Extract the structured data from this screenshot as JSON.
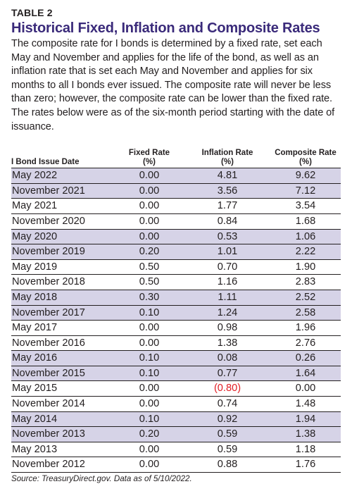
{
  "table_label": "TABLE 2",
  "title": "Historical Fixed, Inflation and Composite Rates",
  "title_color": "#3a2a7a",
  "shade_color": "#d6d3e7",
  "negative_color": "#e21d24",
  "intro": "The composite rate for I bonds is determined by a fixed rate, set each May and November and applies for the life of the bond, as well as an inflation rate that is set each May and November and applies for six months to all I bonds ever issued. The composite rate will never be less than zero; however, the composite rate can be lower than the fixed rate. The rates below were as of the six-month period starting with the date of issuance.",
  "columns": [
    {
      "line1": "",
      "line2": "I Bond Issue Date"
    },
    {
      "line1": "Fixed Rate",
      "line2": "(%)"
    },
    {
      "line1": "Inflation Rate",
      "line2": "(%)"
    },
    {
      "line1": "Composite Rate",
      "line2": "(%)"
    }
  ],
  "rows": [
    {
      "date": "May 2022",
      "fixed": "0.00",
      "inflation": "4.81",
      "composite": "9.62",
      "shaded": true
    },
    {
      "date": "November 2021",
      "fixed": "0.00",
      "inflation": "3.56",
      "composite": "7.12",
      "shaded": true
    },
    {
      "date": "May 2021",
      "fixed": "0.00",
      "inflation": "1.77",
      "composite": "3.54",
      "shaded": false
    },
    {
      "date": "November 2020",
      "fixed": "0.00",
      "inflation": "0.84",
      "composite": "1.68",
      "shaded": false
    },
    {
      "date": "May 2020",
      "fixed": "0.00",
      "inflation": "0.53",
      "composite": "1.06",
      "shaded": true
    },
    {
      "date": "November 2019",
      "fixed": "0.20",
      "inflation": "1.01",
      "composite": "2.22",
      "shaded": true
    },
    {
      "date": "May 2019",
      "fixed": "0.50",
      "inflation": "0.70",
      "composite": "1.90",
      "shaded": false
    },
    {
      "date": "November 2018",
      "fixed": "0.50",
      "inflation": "1.16",
      "composite": "2.83",
      "shaded": false
    },
    {
      "date": "May 2018",
      "fixed": "0.30",
      "inflation": "1.11",
      "composite": "2.52",
      "shaded": true
    },
    {
      "date": "November 2017",
      "fixed": "0.10",
      "inflation": "1.24",
      "composite": "2.58",
      "shaded": true
    },
    {
      "date": "May 2017",
      "fixed": "0.00",
      "inflation": "0.98",
      "composite": "1.96",
      "shaded": false
    },
    {
      "date": "November 2016",
      "fixed": "0.00",
      "inflation": "1.38",
      "composite": "2.76",
      "shaded": false
    },
    {
      "date": "May 2016",
      "fixed": "0.10",
      "inflation": "0.08",
      "composite": "0.26",
      "shaded": true
    },
    {
      "date": "November 2015",
      "fixed": "0.10",
      "inflation": "0.77",
      "composite": "1.64",
      "shaded": true
    },
    {
      "date": "May 2015",
      "fixed": "0.00",
      "inflation": "(0.80)",
      "composite": "0.00",
      "shaded": false,
      "negative": true
    },
    {
      "date": "November 2014",
      "fixed": "0.00",
      "inflation": "0.74",
      "composite": "1.48",
      "shaded": false
    },
    {
      "date": "May 2014",
      "fixed": "0.10",
      "inflation": "0.92",
      "composite": "1.94",
      "shaded": true
    },
    {
      "date": "November 2013",
      "fixed": "0.20",
      "inflation": "0.59",
      "composite": "1.38",
      "shaded": true
    },
    {
      "date": "May 2013",
      "fixed": "0.00",
      "inflation": "0.59",
      "composite": "1.18",
      "shaded": false
    },
    {
      "date": "November 2012",
      "fixed": "0.00",
      "inflation": "0.88",
      "composite": "1.76",
      "shaded": false
    }
  ],
  "source": "Source: TreasuryDirect.gov. Data as of 5/10/2022."
}
